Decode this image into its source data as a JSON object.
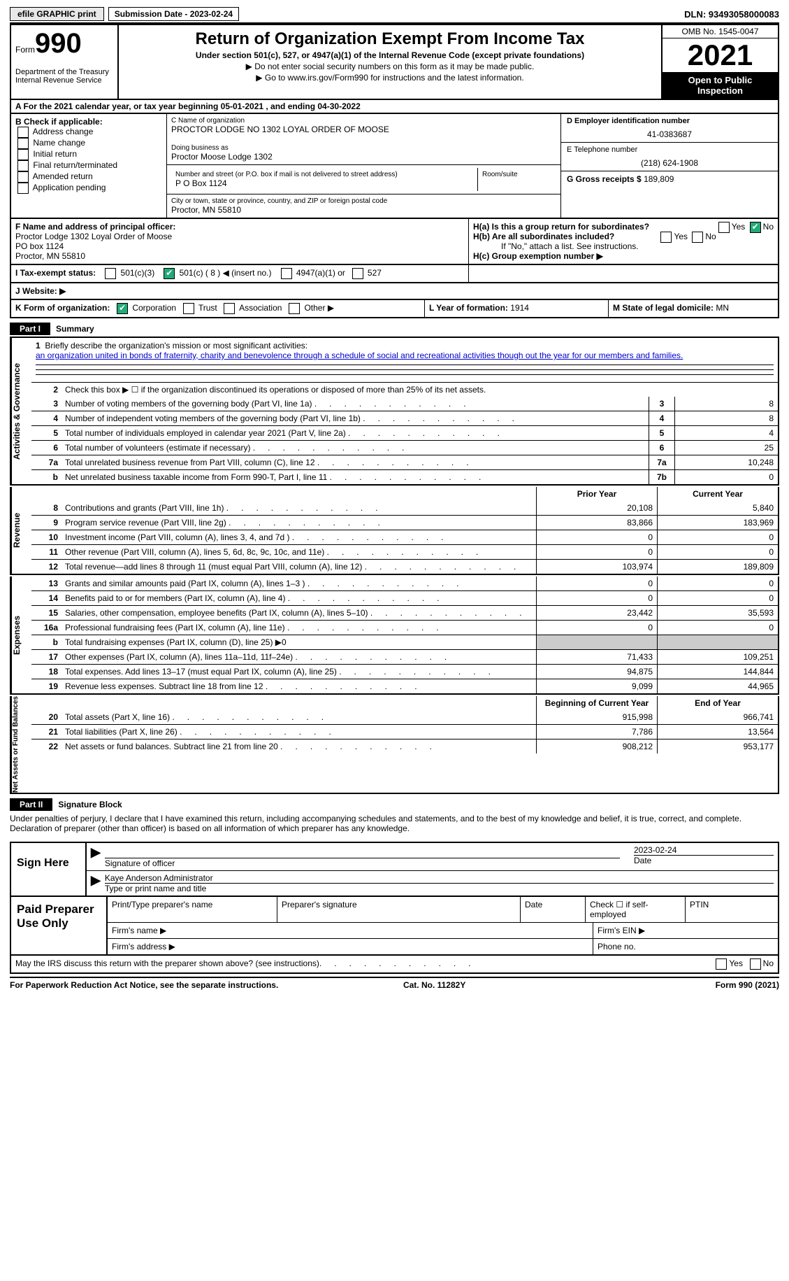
{
  "topbar": {
    "efile": "efile GRAPHIC print",
    "sub_label": "Submission Date - 2023-02-24",
    "dln": "DLN: 93493058000083"
  },
  "hdr": {
    "form_word": "Form",
    "form_num": "990",
    "dept": "Department of the Treasury\nInternal Revenue Service",
    "title": "Return of Organization Exempt From Income Tax",
    "sub": "Under section 501(c), 527, or 4947(a)(1) of the Internal Revenue Code (except private foundations)",
    "note1": "▶ Do not enter social security numbers on this form as it may be made public.",
    "note2": "▶ Go to www.irs.gov/Form990 for instructions and the latest information.",
    "omb": "OMB No. 1545-0047",
    "year": "2021",
    "inspect": "Open to Public Inspection"
  },
  "a": {
    "text": "A   For the 2021 calendar year, or tax year beginning 05-01-2021    , and ending 04-30-2022"
  },
  "b": {
    "title": "B Check if applicable:",
    "items": [
      "Address change",
      "Name change",
      "Initial return",
      "Final return/terminated",
      "Amended return",
      "Application pending"
    ]
  },
  "c": {
    "lab_name": "C Name of organization",
    "name": "PROCTOR LODGE NO 1302 LOYAL ORDER OF MOOSE",
    "lab_dba": "Doing business as",
    "dba": "Proctor Moose Lodge 1302",
    "lab_street": "Number and street (or P.O. box if mail is not delivered to street address)",
    "street": "P O Box 1124",
    "room": "Room/suite",
    "lab_city": "City or town, state or province, country, and ZIP or foreign postal code",
    "city": "Proctor, MN  55810"
  },
  "d": {
    "lab": "D Employer identification number",
    "val": "41-0383687",
    "lab_e": "E Telephone number",
    "val_e": "(218) 624-1908",
    "lab_g": "G Gross receipts $",
    "val_g": "189,809"
  },
  "f": {
    "lab": "F  Name and address of principal officer:",
    "l1": "Proctor Lodge 1302 Loyal Order of Moose",
    "l2": "PO box 1124",
    "l3": "Proctor, MN  55810"
  },
  "h": {
    "a": "H(a)  Is this a group return for subordinates?",
    "b": "H(b)  Are all subordinates included?",
    "b2": "If \"No,\" attach a list. See instructions.",
    "c": "H(c)  Group exemption number ▶"
  },
  "i": {
    "lab": "I    Tax-exempt status:",
    "c1": "501(c)(3)",
    "c2": "501(c) ( 8 ) ◀ (insert no.)",
    "c3": "4947(a)(1) or",
    "c4": "527"
  },
  "j": {
    "lab": "J    Website: ▶"
  },
  "k": {
    "lab": "K Form of organization:",
    "c1": "Corporation",
    "c2": "Trust",
    "c3": "Association",
    "c4": "Other ▶"
  },
  "l": {
    "lab": "L Year of formation:",
    "val": "1914"
  },
  "m": {
    "lab": "M State of legal domicile:",
    "val": "MN"
  },
  "part1": {
    "bar": "Part I",
    "title": "Summary"
  },
  "mission": {
    "num": "1",
    "lab": "Briefly describe the organization's mission or most significant activities:",
    "txt": "an organization united in bonds of fraternity, charity and benevolence through a schedule of social and recreational activities though out the year for our members and families."
  },
  "l2": {
    "num": "2",
    "txt": "Check this box ▶ ☐ if the organization discontinued its operations or disposed of more than 25% of its net assets."
  },
  "tabs": {
    "ag": "Activities & Governance",
    "rev": "Revenue",
    "exp": "Expenses",
    "net": "Net Assets or Fund Balances"
  },
  "rows_ag": [
    {
      "n": "3",
      "t": "Number of voting members of the governing body (Part VI, line 1a)",
      "b": "3",
      "v": "8"
    },
    {
      "n": "4",
      "t": "Number of independent voting members of the governing body (Part VI, line 1b)",
      "b": "4",
      "v": "8"
    },
    {
      "n": "5",
      "t": "Total number of individuals employed in calendar year 2021 (Part V, line 2a)",
      "b": "5",
      "v": "4"
    },
    {
      "n": "6",
      "t": "Total number of volunteers (estimate if necessary)",
      "b": "6",
      "v": "25"
    },
    {
      "n": "7a",
      "t": "Total unrelated business revenue from Part VIII, column (C), line 12",
      "b": "7a",
      "v": "10,248"
    },
    {
      "n": "b",
      "t": "Net unrelated business taxable income from Form 990-T, Part I, line 11",
      "b": "7b",
      "v": "0"
    }
  ],
  "colhdr": {
    "py": "Prior Year",
    "cy": "Current Year"
  },
  "rows_rev": [
    {
      "n": "8",
      "t": "Contributions and grants (Part VIII, line 1h)",
      "py": "20,108",
      "cy": "5,840"
    },
    {
      "n": "9",
      "t": "Program service revenue (Part VIII, line 2g)",
      "py": "83,866",
      "cy": "183,969"
    },
    {
      "n": "10",
      "t": "Investment income (Part VIII, column (A), lines 3, 4, and 7d )",
      "py": "0",
      "cy": "0"
    },
    {
      "n": "11",
      "t": "Other revenue (Part VIII, column (A), lines 5, 6d, 8c, 9c, 10c, and 11e)",
      "py": "0",
      "cy": "0"
    },
    {
      "n": "12",
      "t": "Total revenue—add lines 8 through 11 (must equal Part VIII, column (A), line 12)",
      "py": "103,974",
      "cy": "189,809"
    }
  ],
  "rows_exp": [
    {
      "n": "13",
      "t": "Grants and similar amounts paid (Part IX, column (A), lines 1–3 )",
      "py": "0",
      "cy": "0"
    },
    {
      "n": "14",
      "t": "Benefits paid to or for members (Part IX, column (A), line 4)",
      "py": "0",
      "cy": "0"
    },
    {
      "n": "15",
      "t": "Salaries, other compensation, employee benefits (Part IX, column (A), lines 5–10)",
      "py": "23,442",
      "cy": "35,593"
    },
    {
      "n": "16a",
      "t": "Professional fundraising fees (Part IX, column (A), line 11e)",
      "py": "0",
      "cy": "0"
    },
    {
      "n": "b",
      "t": "Total fundraising expenses (Part IX, column (D), line 25) ▶0",
      "py": "",
      "cy": "",
      "gray": true
    },
    {
      "n": "17",
      "t": "Other expenses (Part IX, column (A), lines 11a–11d, 11f–24e)",
      "py": "71,433",
      "cy": "109,251"
    },
    {
      "n": "18",
      "t": "Total expenses. Add lines 13–17 (must equal Part IX, column (A), line 25)",
      "py": "94,875",
      "cy": "144,844"
    },
    {
      "n": "19",
      "t": "Revenue less expenses. Subtract line 18 from line 12",
      "py": "9,099",
      "cy": "44,965"
    }
  ],
  "colhdr2": {
    "py": "Beginning of Current Year",
    "cy": "End of Year"
  },
  "rows_net": [
    {
      "n": "20",
      "t": "Total assets (Part X, line 16)",
      "py": "915,998",
      "cy": "966,741"
    },
    {
      "n": "21",
      "t": "Total liabilities (Part X, line 26)",
      "py": "7,786",
      "cy": "13,564"
    },
    {
      "n": "22",
      "t": "Net assets or fund balances. Subtract line 21 from line 20",
      "py": "908,212",
      "cy": "953,177"
    }
  ],
  "part2": {
    "bar": "Part II",
    "title": "Signature Block"
  },
  "declare": "Under penalties of perjury, I declare that I have examined this return, including accompanying schedules and statements, and to the best of my knowledge and belief, it is true, correct, and complete. Declaration of preparer (other than officer) is based on all information of which preparer has any knowledge.",
  "sign": {
    "here": "Sign Here",
    "sig_of": "Signature of officer",
    "date": "2023-02-24",
    "date_lab": "Date",
    "name": "Kaye Anderson  Administrator",
    "name_lab": "Type or print name and title"
  },
  "paid": {
    "title": "Paid Preparer Use Only",
    "c1": "Print/Type preparer's name",
    "c2": "Preparer's signature",
    "c3": "Date",
    "c4": "Check ☐ if self-employed",
    "c5": "PTIN",
    "f1": "Firm's name   ▶",
    "f2": "Firm's EIN ▶",
    "f3": "Firm's address ▶",
    "f4": "Phone no."
  },
  "may": {
    "txt": "May the IRS discuss this return with the preparer shown above? (see instructions)",
    "yes": "Yes",
    "no": "No"
  },
  "foot": {
    "l": "For Paperwork Reduction Act Notice, see the separate instructions.",
    "c": "Cat. No. 11282Y",
    "r": "Form 990 (2021)"
  }
}
